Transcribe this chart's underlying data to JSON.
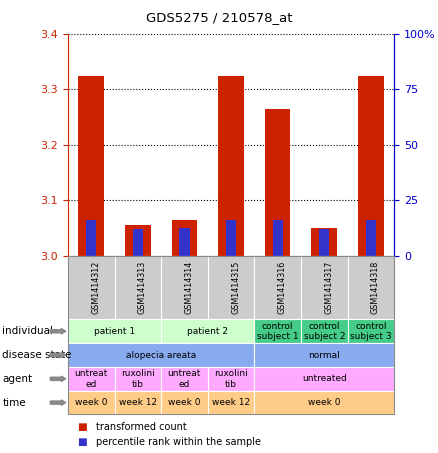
{
  "title": "GDS5275 / 210578_at",
  "samples": [
    "GSM1414312",
    "GSM1414313",
    "GSM1414314",
    "GSM1414315",
    "GSM1414316",
    "GSM1414317",
    "GSM1414318"
  ],
  "red_bars": [
    3.325,
    3.055,
    3.065,
    3.325,
    3.265,
    3.05,
    3.325
  ],
  "blue_bars": [
    3.065,
    3.048,
    3.05,
    3.065,
    3.065,
    3.048,
    3.065
  ],
  "ylim": [
    3.0,
    3.4
  ],
  "yticks_left": [
    3.0,
    3.1,
    3.2,
    3.3,
    3.4
  ],
  "yticks_right": [
    0,
    25,
    50,
    75,
    100
  ],
  "bar_width": 0.55,
  "blue_bar_width": 0.22,
  "bar_color_red": "#cc2200",
  "bar_color_blue": "#3333cc",
  "grid_color": "#000000",
  "left_axis_color": "#cc2200",
  "right_axis_color": "#0000cc",
  "legend_red": "transformed count",
  "legend_blue": "percentile rank within the sample",
  "individual_groups": [
    {
      "cols": [
        0,
        1
      ],
      "text": "patient 1",
      "color": "#ccffcc"
    },
    {
      "cols": [
        2,
        3
      ],
      "text": "patient 2",
      "color": "#ccffcc"
    },
    {
      "cols": [
        4
      ],
      "text": "control\nsubject 1",
      "color": "#44cc88"
    },
    {
      "cols": [
        5
      ],
      "text": "control\nsubject 2",
      "color": "#44cc88"
    },
    {
      "cols": [
        6
      ],
      "text": "control\nsubject 3",
      "color": "#44cc88"
    }
  ],
  "disease_groups": [
    {
      "cols": [
        0,
        1,
        2,
        3
      ],
      "text": "alopecia areata",
      "color": "#88aaee"
    },
    {
      "cols": [
        4,
        5,
        6
      ],
      "text": "normal",
      "color": "#88aaee"
    }
  ],
  "agent_groups": [
    {
      "cols": [
        0
      ],
      "text": "untreat\ned",
      "color": "#ffaaff"
    },
    {
      "cols": [
        1
      ],
      "text": "ruxolini\ntib",
      "color": "#ffaaff"
    },
    {
      "cols": [
        2
      ],
      "text": "untreat\ned",
      "color": "#ffaaff"
    },
    {
      "cols": [
        3
      ],
      "text": "ruxolini\ntib",
      "color": "#ffaaff"
    },
    {
      "cols": [
        4,
        5,
        6
      ],
      "text": "untreated",
      "color": "#ffaaff"
    }
  ],
  "time_groups": [
    {
      "cols": [
        0
      ],
      "text": "week 0",
      "color": "#ffcc88"
    },
    {
      "cols": [
        1
      ],
      "text": "week 12",
      "color": "#ffcc88"
    },
    {
      "cols": [
        2
      ],
      "text": "week 0",
      "color": "#ffcc88"
    },
    {
      "cols": [
        3
      ],
      "text": "week 12",
      "color": "#ffcc88"
    },
    {
      "cols": [
        4,
        5,
        6
      ],
      "text": "week 0",
      "color": "#ffcc88"
    }
  ],
  "row_names": [
    "individual",
    "disease state",
    "agent",
    "time"
  ]
}
